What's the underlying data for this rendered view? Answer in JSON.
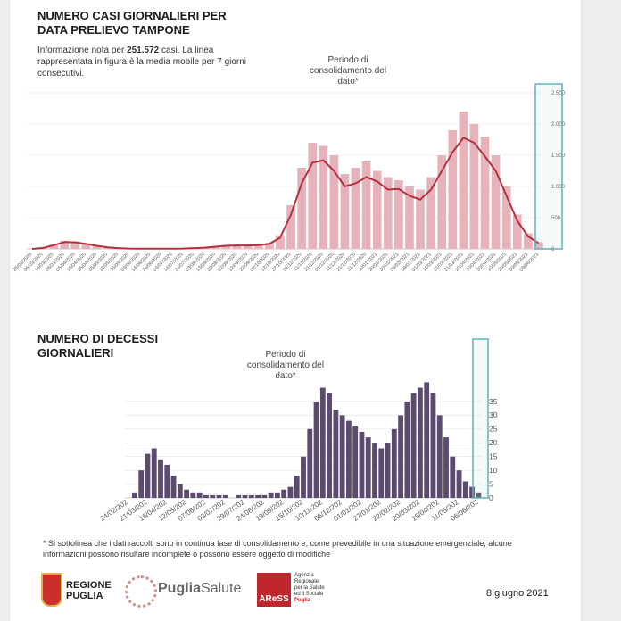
{
  "chart_data": [
    {
      "type": "bar",
      "title": "NUMERO CASI GIORNALIERI PER DATA PRELIEVO TAMPONE",
      "subtitle": [
        "Informazione nota per",
        "251.572",
        "casi. La linea rappresentata in figura è la media mobile per 7 giorni consecutivi."
      ],
      "annotation": "Periodo di consolidamento del dato*",
      "categories": [
        "25/02/2020",
        "06/03/2020",
        "16/03/2020",
        "26/03/2020",
        "05/04/2020",
        "15/04/2020",
        "25/04/2020",
        "05/05/2020",
        "15/05/2020",
        "25/05/2020",
        "04/06/2020",
        "14/06/2020",
        "24/06/2020",
        "04/07/2020",
        "14/07/2020",
        "24/07/2020",
        "03/08/2020",
        "13/08/2020",
        "23/08/2020",
        "02/09/2020",
        "12/09/2020",
        "22/09/2020",
        "02/10/2020",
        "12/10/2020",
        "22/10/2020",
        "01/11/2020",
        "11/11/2020",
        "21/11/2020",
        "01/12/2020",
        "11/12/2020",
        "21/12/2020",
        "31/12/2020",
        "10/01/2021",
        "20/01/2021",
        "30/01/2021",
        "09/02/2021",
        "19/02/2021",
        "01/03/2021",
        "11/03/2021",
        "21/03/2021",
        "31/03/2021",
        "10/04/2021",
        "20/04/2021",
        "30/04/2021",
        "10/05/2021",
        "20/05/2021",
        "30/05/2021",
        "08/06/2021"
      ],
      "series": [
        {
          "color": "#e6b3ba",
          "values": [
            0,
            25,
            75,
            130,
            120,
            90,
            55,
            30,
            15,
            8,
            5,
            4,
            3,
            5,
            8,
            15,
            25,
            45,
            65,
            70,
            65,
            75,
            100,
            220,
            700,
            1300,
            1700,
            1650,
            1500,
            1200,
            1300,
            1400,
            1250,
            1150,
            1100,
            1000,
            950,
            1150,
            1500,
            1900,
            2200,
            2000,
            1800,
            1500,
            1000,
            550,
            250,
            110
          ]
        },
        {
          "type": "line",
          "color": "#b5303f",
          "values": [
            0,
            15,
            60,
            110,
            105,
            80,
            50,
            25,
            12,
            6,
            4,
            3,
            3,
            4,
            6,
            12,
            20,
            35,
            50,
            55,
            55,
            60,
            80,
            180,
            550,
            1050,
            1380,
            1420,
            1250,
            1000,
            1050,
            1150,
            1080,
            950,
            960,
            850,
            790,
            950,
            1250,
            1550,
            1780,
            1700,
            1480,
            1250,
            850,
            450,
            200,
            90
          ]
        }
      ],
      "ylim": [
        0,
        2500
      ],
      "yticks": [
        0,
        500,
        {
          "value": 1000,
          "label": "1.000"
        },
        {
          "value": 1500,
          "label": "1.500"
        },
        {
          "value": 2000,
          "label": "2.000"
        },
        {
          "value": 2500,
          "label": "2.500"
        }
      ],
      "grid": true
    },
    {
      "type": "bar",
      "title": "NUMERO DI DECESSI GIORNALIERI",
      "annotation": "Periodo di consolidamento del dato*",
      "categories": [
        "24/02/202",
        null,
        null,
        "21/03/202",
        null,
        null,
        "16/04/202",
        null,
        null,
        "12/05/202",
        null,
        null,
        "07/06/202",
        null,
        null,
        "03/07/202",
        null,
        null,
        "29/07/202",
        null,
        null,
        "24/08/202",
        null,
        null,
        "19/09/202",
        null,
        null,
        "15/10/202",
        null,
        null,
        "10/11/202",
        null,
        null,
        "06/12/202",
        null,
        null,
        "01/01/202",
        null,
        null,
        "27/01/202",
        null,
        null,
        "22/02/202",
        null,
        null,
        "20/03/202",
        null,
        null,
        "15/04/202",
        null,
        null,
        "11/05/202",
        null,
        null,
        "06/06/202"
      ],
      "series": [
        {
          "color": "#5b4b6f",
          "values": [
            0,
            2,
            10,
            16,
            18,
            14,
            12,
            8,
            5,
            3,
            2,
            2,
            1,
            1,
            1,
            1,
            0,
            1,
            1,
            1,
            1,
            1,
            2,
            2,
            3,
            4,
            8,
            15,
            25,
            35,
            40,
            38,
            32,
            30,
            28,
            26,
            24,
            22,
            20,
            18,
            20,
            25,
            30,
            35,
            38,
            40,
            42,
            38,
            30,
            22,
            15,
            10,
            6,
            4,
            2
          ]
        }
      ],
      "ylim": [
        0,
        58
      ],
      "yticks": [
        0,
        5,
        10,
        15,
        20,
        25,
        30,
        35
      ],
      "grid": true
    }
  ],
  "footnote": "* Si sottolinea che i dati raccolti sono in continua fase di consolidamento e, come prevedibile in una situazione emergenziale, alcune informazioni possono risultare incomplete o possono essere oggetto di modifiche",
  "logos": {
    "regione": [
      "REGIONE",
      "PUGLIA"
    ],
    "puglia": "Puglia",
    "salute": "Salute",
    "aress": "AReSS",
    "agenzia": [
      "Agenzia",
      "Regionale",
      "per la Salute",
      "ed il Sociale",
      "Puglia"
    ]
  },
  "date": "8 giugno 2021"
}
